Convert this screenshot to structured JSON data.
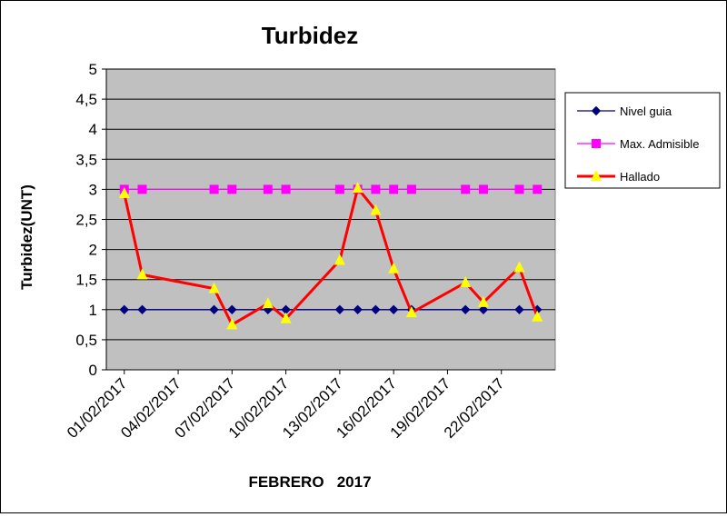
{
  "chart_data": {
    "type": "line",
    "title": "Turbidez",
    "xlabel": "FEBRERO   2017",
    "ylabel": "Turbidez(UNT)",
    "x_tick_labels": [
      "01/02/2017",
      "04/02/2017",
      "07/02/2017",
      "10/02/2017",
      "13/02/2017",
      "16/02/2017",
      "19/02/2017",
      "22/02/2017"
    ],
    "y_tick_labels": [
      "0",
      "0,5",
      "1",
      "1,5",
      "2",
      "2,5",
      "3",
      "3,5",
      "4",
      "4,5",
      "5"
    ],
    "x_range": [
      "31/01/2017",
      "25/02/2017"
    ],
    "ylim": [
      0,
      5
    ],
    "grid": "horizontal",
    "legend_position": "right",
    "dates": [
      "01/02/2017",
      "02/02/2017",
      "06/02/2017",
      "07/02/2017",
      "09/02/2017",
      "10/02/2017",
      "13/02/2017",
      "14/02/2017",
      "15/02/2017",
      "16/02/2017",
      "17/02/2017",
      "20/02/2017",
      "21/02/2017",
      "23/02/2017",
      "24/02/2017"
    ],
    "series": [
      {
        "name": "Nivel guia",
        "color": "#000080",
        "marker": "diamond",
        "values": [
          1,
          1,
          1,
          1,
          1,
          1,
          1,
          1,
          1,
          1,
          1,
          1,
          1,
          1,
          1
        ]
      },
      {
        "name": "Max. Admisible",
        "color": "#ff00ff",
        "marker": "square",
        "values": [
          3,
          3,
          3,
          3,
          3,
          3,
          3,
          3,
          3,
          3,
          3,
          3,
          3,
          3,
          3
        ]
      },
      {
        "name": "Hallado",
        "color": "#ff0000",
        "marker": "triangle",
        "marker_color": "#ffff00",
        "values": [
          2.93,
          1.58,
          1.35,
          0.75,
          1.1,
          0.85,
          1.82,
          3.02,
          2.65,
          1.68,
          0.95,
          1.45,
          1.12,
          1.7,
          0.88
        ]
      }
    ],
    "plot_background": "#c0c0c0"
  }
}
